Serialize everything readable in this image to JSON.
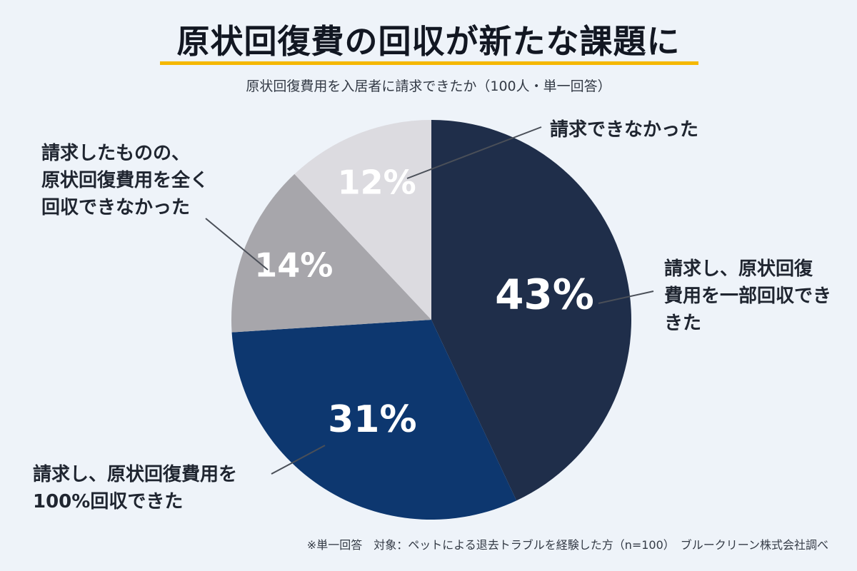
{
  "title": "原状回復費の回収が新たな課題に",
  "subtitle": "原状回復費用を入居者に請求できたか（100人・単一回答）",
  "footnote": "※単一回答　対象：ペットによる退去トラブルを経験した方（n=100）　ブルークリーン株式会社調べ",
  "colors": {
    "slice_43": "#1f2e4a",
    "slice_31": "#0d376f",
    "slice_14": "#a7a6ab",
    "slice_12": "#dcdbe0",
    "leader": "#4a4f58",
    "accent": "#f5b800"
  },
  "chart_data": {
    "type": "pie",
    "slices": [
      {
        "label_lines": [
          "請求し、原状回復",
          "費用を一部回収でき",
          "きた"
        ],
        "value": 43,
        "display": "43%"
      },
      {
        "label_lines": [
          "請求し、原状回復費用を",
          "100%回収できた"
        ],
        "value": 31,
        "display": "31%"
      },
      {
        "label_lines": [
          "請求したものの、",
          "原状回復費用を全く",
          "回収できなかった"
        ],
        "value": 14,
        "display": "14%"
      },
      {
        "label_lines": [
          "請求できなかった"
        ],
        "value": 12,
        "display": "12%"
      }
    ]
  }
}
